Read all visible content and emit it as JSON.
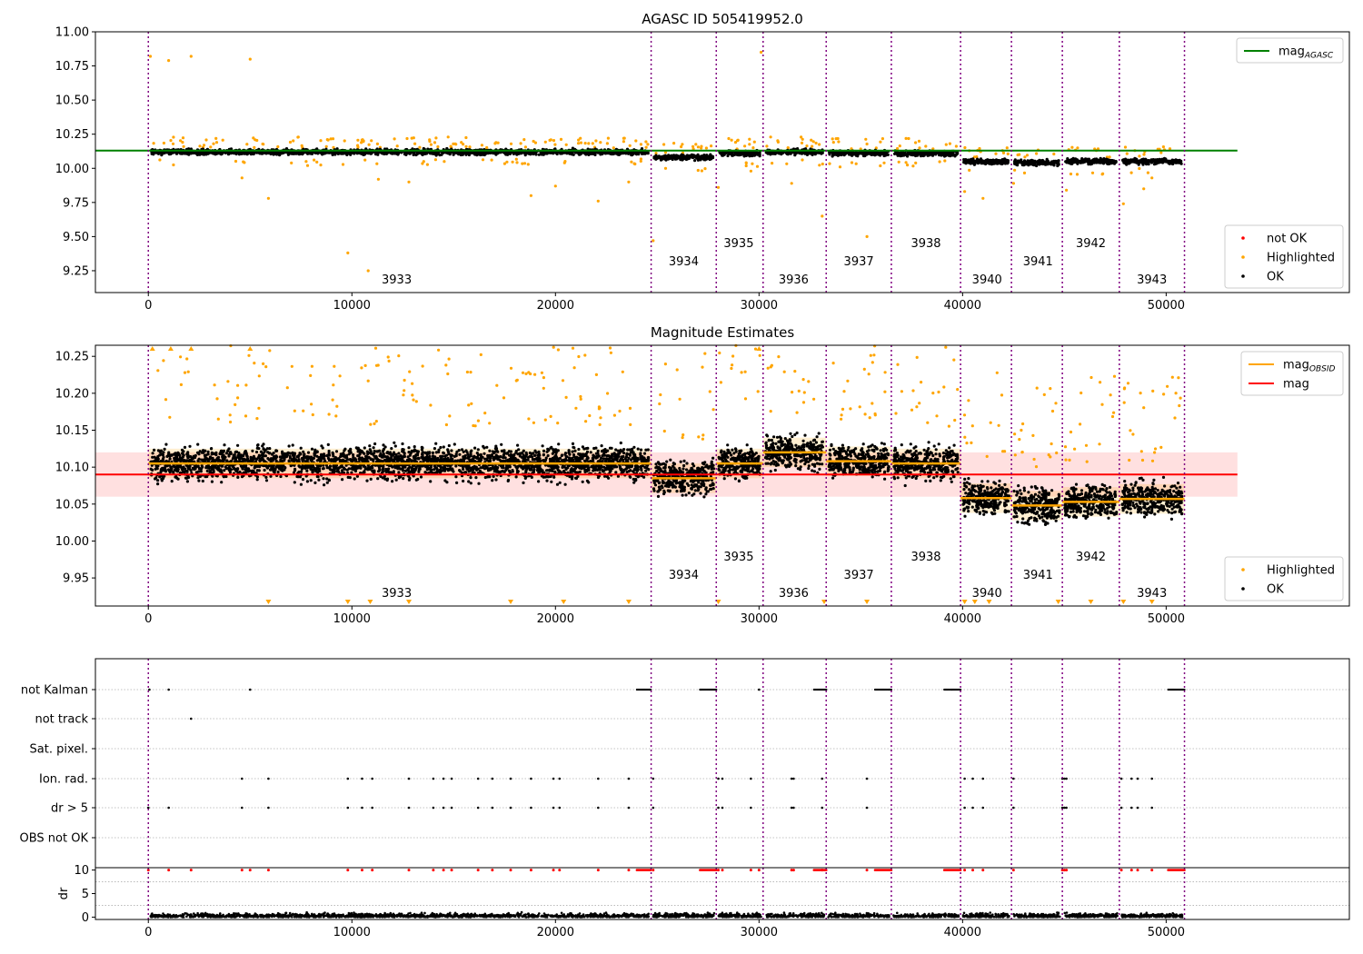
{
  "figure": {
    "title": "AGASC ID 505419952.0",
    "x_ticks": [
      0,
      10000,
      20000,
      30000,
      40000,
      50000
    ],
    "x_range": [
      -2600,
      59000
    ],
    "obsid_boundaries": [
      0,
      24700,
      27900,
      30200,
      33300,
      36500,
      39900,
      42400,
      44900,
      47700,
      50900
    ],
    "colors": {
      "ok": "#000000",
      "highlighted": "#ffa500",
      "not_ok": "#ff0000",
      "mag_agasc": "#008000",
      "mag": "#ff0000",
      "mag_obsid": "#ffa500",
      "boundary": "#800080",
      "band": "#ffd6d6"
    }
  },
  "chart_data": [
    {
      "type": "scatter",
      "title": "AGASC ID 505419952.0",
      "xlabel": "",
      "ylabel": "",
      "xlim": [
        -2600,
        59000
      ],
      "ylim": [
        9.09,
        11.0
      ],
      "y_ticks": [
        "11.00",
        "10.75",
        "10.50",
        "10.25",
        "10.00",
        "9.75",
        "9.50",
        "9.25"
      ],
      "y_tick_values": [
        11.0,
        10.75,
        10.5,
        10.25,
        10.0,
        9.75,
        9.5,
        9.25
      ],
      "mag_agasc": 10.13,
      "segments": [
        {
          "obsid": "3933",
          "x": [
            0,
            24700
          ],
          "mag": 10.12
        },
        {
          "obsid": "3934",
          "x": [
            24700,
            27900
          ],
          "mag": 10.08
        },
        {
          "obsid": "3935",
          "x": [
            27900,
            30200
          ],
          "mag": 10.11
        },
        {
          "obsid": "3936",
          "x": [
            30200,
            33300
          ],
          "mag": 10.12
        },
        {
          "obsid": "3937",
          "x": [
            33300,
            36500
          ],
          "mag": 10.11
        },
        {
          "obsid": "3938",
          "x": [
            36500,
            39900
          ],
          "mag": 10.11
        },
        {
          "obsid": "3940",
          "x": [
            39900,
            42400
          ],
          "mag": 10.05
        },
        {
          "obsid": "3941",
          "x": [
            42400,
            44900
          ],
          "mag": 10.04
        },
        {
          "obsid": "3942",
          "x": [
            44900,
            47700
          ],
          "mag": 10.05
        },
        {
          "obsid": "3943",
          "x": [
            47700,
            50900
          ],
          "mag": 10.05
        }
      ],
      "highlighted_outliers": [
        [
          100,
          10.82
        ],
        [
          1000,
          10.79
        ],
        [
          2100,
          10.82
        ],
        [
          5000,
          10.8
        ],
        [
          4600,
          9.93
        ],
        [
          5900,
          9.78
        ],
        [
          9800,
          9.38
        ],
        [
          10800,
          9.25
        ],
        [
          11300,
          9.92
        ],
        [
          12800,
          9.9
        ],
        [
          18800,
          9.8
        ],
        [
          20000,
          9.87
        ],
        [
          22100,
          9.76
        ],
        [
          23600,
          9.9
        ],
        [
          24800,
          9.47
        ],
        [
          28000,
          9.86
        ],
        [
          29600,
          9.98
        ],
        [
          30100,
          10.85
        ],
        [
          31600,
          9.89
        ],
        [
          33100,
          9.65
        ],
        [
          35300,
          9.5
        ],
        [
          40100,
          9.83
        ],
        [
          41000,
          9.78
        ],
        [
          42500,
          9.89
        ],
        [
          45100,
          9.84
        ],
        [
          47900,
          9.74
        ],
        [
          48900,
          9.85
        ],
        [
          49300,
          9.93
        ]
      ],
      "legend": [
        "mag_AGASC",
        "not OK",
        "Highlighted",
        "OK"
      ],
      "legend_placement": [
        "upper right",
        "lower right"
      ]
    },
    {
      "type": "scatter",
      "title": "Magnitude Estimates",
      "xlabel": "",
      "ylabel": "",
      "xlim": [
        -2600,
        59000
      ],
      "ylim": [
        9.912,
        10.265
      ],
      "y_ticks": [
        "10.25",
        "10.20",
        "10.15",
        "10.10",
        "10.05",
        "10.00",
        "9.95"
      ],
      "y_tick_values": [
        10.25,
        10.2,
        10.15,
        10.1,
        10.05,
        10.0,
        9.95
      ],
      "mag": 10.09,
      "mag_band": [
        10.06,
        10.12
      ],
      "segments": [
        {
          "obsid": "3933",
          "x": [
            0,
            24700
          ],
          "mag_obsid": 10.105
        },
        {
          "obsid": "3934",
          "x": [
            24700,
            27900
          ],
          "mag_obsid": 10.085
        },
        {
          "obsid": "3935",
          "x": [
            27900,
            30200
          ],
          "mag_obsid": 10.105
        },
        {
          "obsid": "3936",
          "x": [
            30200,
            33300
          ],
          "mag_obsid": 10.12
        },
        {
          "obsid": "3937",
          "x": [
            33300,
            36500
          ],
          "mag_obsid": 10.108
        },
        {
          "obsid": "3938",
          "x": [
            36500,
            39900
          ],
          "mag_obsid": 10.105
        },
        {
          "obsid": "3940",
          "x": [
            39900,
            42400
          ],
          "mag_obsid": 10.058
        },
        {
          "obsid": "3941",
          "x": [
            42400,
            44900
          ],
          "mag_obsid": 10.048
        },
        {
          "obsid": "3942",
          "x": [
            44900,
            47700
          ],
          "mag_obsid": 10.053
        },
        {
          "obsid": "3943",
          "x": [
            47700,
            50900
          ],
          "mag_obsid": 10.057
        }
      ],
      "legend": [
        "mag_OBSID",
        "mag",
        "Highlighted",
        "OK"
      ],
      "legend_placement": [
        "upper right",
        "lower right"
      ]
    },
    {
      "type": "scatter",
      "title": "",
      "xlabel": "",
      "ylabel": "",
      "xlim": [
        -2600,
        59000
      ],
      "categories": [
        "not Kalman",
        "not track",
        "Sat. pixel.",
        "Ion. rad.",
        "dr > 5",
        "OBS not OK"
      ],
      "flag_runs": {
        "not Kalman": [
          [
            24000,
            24700
          ],
          [
            27100,
            27900
          ],
          [
            32700,
            33300
          ],
          [
            35700,
            36500
          ],
          [
            39100,
            39900
          ],
          [
            50100,
            50900
          ]
        ],
        "not track": [],
        "Sat. pixel.": [],
        "Ion. rad.": [],
        "dr > 5": [],
        "OBS not OK": []
      },
      "flag_points": {
        "not Kalman": [
          50,
          1000,
          5000,
          30000
        ],
        "not track": [
          2100
        ],
        "Ion. rad.": [
          4600,
          5900,
          9800,
          10500,
          11000,
          12800,
          14000,
          14500,
          14900,
          16200,
          16900,
          17800,
          18800,
          19900,
          20200,
          22100,
          23600,
          24800,
          28000,
          28200,
          29600,
          31600,
          31700,
          33100,
          35300,
          40100,
          40500,
          41000,
          42500,
          44900,
          45000,
          45100,
          47800,
          48300,
          48600,
          49300
        ],
        "dr > 5": [
          0,
          1000,
          4600,
          5900,
          9800,
          10500,
          11000,
          12800,
          14000,
          14500,
          14900,
          16200,
          16900,
          17800,
          18800,
          19900,
          20200,
          22100,
          23600,
          24800,
          28000,
          28200,
          29600,
          31600,
          31700,
          33100,
          35300,
          40100,
          40500,
          41000,
          42500,
          44900,
          45000,
          45100,
          47800,
          48300,
          48600,
          49300
        ]
      }
    },
    {
      "type": "scatter",
      "title": "",
      "xlabel": "",
      "ylabel": "dr",
      "xlim": [
        -2600,
        59000
      ],
      "ylim": [
        -0.5,
        10.5
      ],
      "y_ticks": [
        "10",
        "5",
        "0"
      ],
      "y_tick_values": [
        10,
        5,
        0
      ],
      "dr_clipped_points": [
        0,
        1000,
        2100,
        4600,
        5000,
        5900,
        9800,
        10500,
        11000,
        12800,
        14000,
        14500,
        14900,
        16200,
        16900,
        17800,
        18800,
        19900,
        20200,
        22100,
        23600,
        24800,
        28000,
        28200,
        29600,
        30000,
        31600,
        31700,
        33100,
        35300,
        40100,
        40500,
        41000,
        42500,
        44900,
        45000,
        45100,
        47800,
        48300,
        48600,
        49300
      ]
    }
  ],
  "obsid_labels": [
    {
      "label": "3933",
      "x": 12200,
      "level": 3
    },
    {
      "label": "3934",
      "x": 26300,
      "level": 2
    },
    {
      "label": "3935",
      "x": 29000,
      "level": 1
    },
    {
      "label": "3936",
      "x": 31700,
      "level": 3
    },
    {
      "label": "3937",
      "x": 34900,
      "level": 2
    },
    {
      "label": "3938",
      "x": 38200,
      "level": 1
    },
    {
      "label": "3940",
      "x": 41200,
      "level": 3
    },
    {
      "label": "3941",
      "x": 43700,
      "level": 2
    },
    {
      "label": "3942",
      "x": 46300,
      "level": 1
    },
    {
      "label": "3943",
      "x": 49300,
      "level": 3
    }
  ],
  "legends": {
    "top_upper": [
      {
        "label": "mag",
        "sub": "AGASC",
        "kind": "line",
        "color": "#008000"
      }
    ],
    "top_lower": [
      {
        "label": "not OK",
        "kind": "dot",
        "color": "#ff0000"
      },
      {
        "label": "Highlighted",
        "kind": "dot",
        "color": "#ffa500"
      },
      {
        "label": "OK",
        "kind": "dot",
        "color": "#000000"
      }
    ],
    "mid_upper": [
      {
        "label": "mag",
        "sub": "OBSID",
        "kind": "line",
        "color": "#ffa500"
      },
      {
        "label": "mag",
        "sub": "",
        "kind": "line",
        "color": "#ff0000"
      }
    ],
    "mid_lower": [
      {
        "label": "Highlighted",
        "kind": "dot",
        "color": "#ffa500"
      },
      {
        "label": "OK",
        "kind": "dot",
        "color": "#000000"
      }
    ]
  }
}
